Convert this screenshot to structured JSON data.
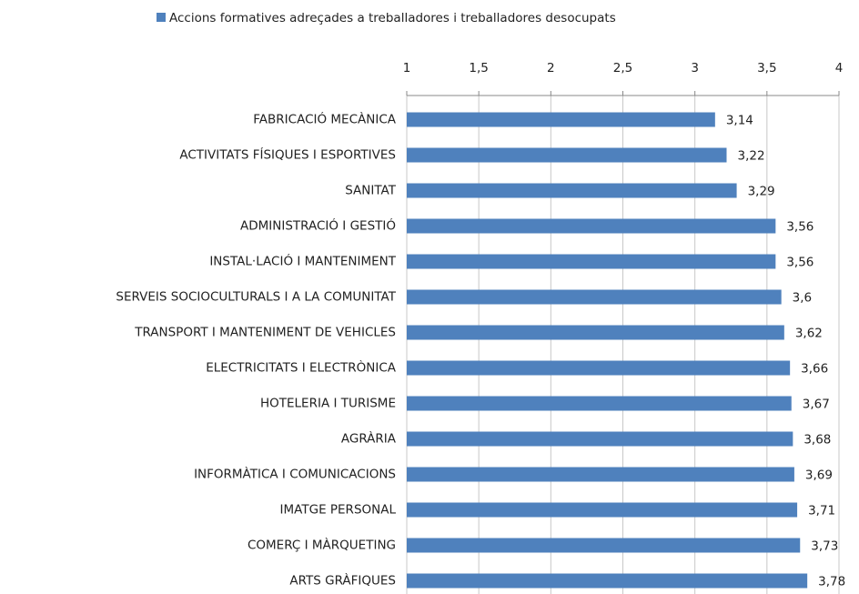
{
  "chart_data": {
    "type": "bar",
    "orientation": "horizontal",
    "categories": [
      "FABRICACIÓ MECÀNICA",
      "ACTIVITATS FÍSIQUES I ESPORTIVES",
      "SANITAT",
      "ADMINISTRACIÓ I GESTIÓ",
      "INSTAL·LACIÓ I MANTENIMENT",
      "SERVEIS SOCIOCULTURALS I A LA COMUNITAT",
      "TRANSPORT I MANTENIMENT DE VEHICLES",
      "ELECTRICITATS I ELECTRÒNICA",
      "HOTELERIA I TURISME",
      "AGRÀRIA",
      "INFORMÀTICA I COMUNICACIONS",
      "IMATGE PERSONAL",
      "COMERÇ I MÀRQUETING",
      "ARTS GRÀFIQUES"
    ],
    "series": [
      {
        "name": "Accions formatives adreçades a treballadores i treballadores desocupats",
        "color": "#4f81bd",
        "values": [
          3.14,
          3.22,
          3.29,
          3.56,
          3.56,
          3.6,
          3.62,
          3.66,
          3.67,
          3.68,
          3.69,
          3.71,
          3.73,
          3.78
        ],
        "value_labels": [
          "3,14",
          "3,22",
          "3,29",
          "3,56",
          "3,56",
          "3,6",
          "3,62",
          "3,66",
          "3,67",
          "3,68",
          "3,69",
          "3,71",
          "3,73",
          "3,78"
        ]
      }
    ],
    "xlim": [
      1,
      4
    ],
    "xticks": [
      1,
      {
        "value": 1.5,
        "label": "1,5"
      },
      2,
      {
        "value": 2.5,
        "label": "2,5"
      },
      3,
      {
        "value": 3.5,
        "label": "3,5"
      },
      4
    ],
    "grid": true,
    "legend": "top"
  }
}
